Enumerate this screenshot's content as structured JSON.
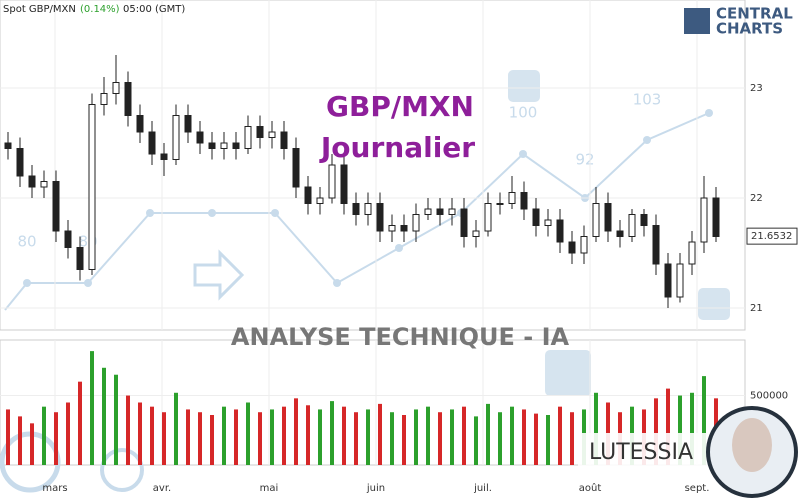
{
  "header": {
    "symbol": "Spot GBP/MXN",
    "change": "(0.14%)",
    "time": "05:00 (GMT)"
  },
  "logo": {
    "line1": "CENTRAL",
    "line2": "CHARTS"
  },
  "watermark": {
    "text": "ANALYSE TECHNIQUE - IA",
    "scores": [
      "80",
      "80",
      "100",
      "92",
      "103"
    ]
  },
  "badge": "LUTESSIA",
  "chart_data": {
    "type": "candlestick",
    "title": "GBP/MXN",
    "subtitle": "Journalier",
    "open": [
      22.5,
      22.45,
      22.2,
      22.1,
      22.15,
      21.7,
      21.55,
      21.35,
      22.85,
      22.95,
      23.05,
      22.75,
      22.6,
      22.4,
      22.35,
      22.75,
      22.6,
      22.5,
      22.45,
      22.5,
      22.45,
      22.65,
      22.55,
      22.6,
      22.45,
      22.1,
      21.95,
      22.0,
      22.3,
      21.95,
      21.85,
      21.95,
      21.7,
      21.75,
      21.7,
      21.85,
      21.9,
      21.85,
      21.9,
      21.65,
      21.7,
      21.95,
      21.95,
      22.05,
      21.9,
      21.75,
      21.8,
      21.6,
      21.5,
      21.65,
      21.95,
      21.7,
      21.65,
      21.85,
      21.75,
      21.4,
      21.1,
      21.4,
      21.6,
      22.0
    ],
    "high": [
      22.6,
      22.55,
      22.3,
      22.25,
      22.25,
      21.8,
      21.65,
      22.95,
      23.1,
      23.3,
      23.15,
      22.85,
      22.7,
      22.5,
      22.85,
      22.85,
      22.7,
      22.6,
      22.6,
      22.6,
      22.75,
      22.75,
      22.7,
      22.7,
      22.55,
      22.2,
      22.1,
      22.4,
      22.4,
      22.05,
      22.05,
      22.05,
      21.85,
      21.85,
      21.95,
      22.0,
      22.0,
      22.0,
      22.0,
      21.8,
      22.05,
      22.05,
      22.2,
      22.15,
      22.0,
      21.9,
      21.9,
      21.7,
      21.75,
      22.1,
      22.05,
      21.8,
      21.9,
      21.9,
      21.85,
      21.5,
      21.5,
      21.7,
      22.2,
      22.1
    ],
    "low": [
      22.35,
      22.1,
      22.0,
      22.0,
      21.6,
      21.45,
      21.25,
      21.3,
      22.75,
      22.85,
      22.65,
      22.5,
      22.3,
      22.2,
      22.3,
      22.5,
      22.4,
      22.35,
      22.35,
      22.35,
      22.4,
      22.45,
      22.45,
      22.35,
      22.0,
      21.85,
      21.85,
      21.95,
      21.85,
      21.75,
      21.75,
      21.6,
      21.6,
      21.6,
      21.6,
      21.8,
      21.75,
      21.75,
      21.55,
      21.55,
      21.65,
      21.85,
      21.9,
      21.8,
      21.65,
      21.65,
      21.5,
      21.4,
      21.4,
      21.6,
      21.6,
      21.55,
      21.6,
      21.65,
      21.3,
      21.0,
      21.05,
      21.3,
      21.5,
      21.6
    ],
    "close": [
      22.45,
      22.2,
      22.1,
      22.15,
      21.7,
      21.55,
      21.35,
      22.85,
      22.95,
      23.05,
      22.75,
      22.6,
      22.4,
      22.35,
      22.75,
      22.6,
      22.5,
      22.45,
      22.5,
      22.45,
      22.65,
      22.55,
      22.6,
      22.45,
      22.1,
      21.95,
      22.0,
      22.3,
      21.95,
      21.85,
      21.95,
      21.7,
      21.75,
      21.7,
      21.85,
      21.9,
      21.85,
      21.9,
      21.65,
      21.7,
      21.95,
      21.95,
      22.05,
      21.9,
      21.75,
      21.8,
      21.6,
      21.5,
      21.65,
      21.95,
      21.7,
      21.65,
      21.85,
      21.75,
      21.4,
      21.1,
      21.4,
      21.6,
      22.0,
      21.65
    ],
    "volume": [
      400000,
      350000,
      300000,
      420000,
      380000,
      450000,
      600000,
      820000,
      700000,
      650000,
      500000,
      450000,
      420000,
      380000,
      520000,
      400000,
      380000,
      360000,
      420000,
      400000,
      450000,
      380000,
      400000,
      420000,
      480000,
      430000,
      400000,
      460000,
      420000,
      380000,
      400000,
      440000,
      380000,
      360000,
      400000,
      420000,
      380000,
      400000,
      420000,
      350000,
      440000,
      380000,
      420000,
      400000,
      370000,
      360000,
      420000,
      380000,
      400000,
      520000,
      450000,
      380000,
      420000,
      400000,
      480000,
      550000,
      500000,
      520000,
      640000,
      480000
    ],
    "x_labels": [
      "mars",
      "avr.",
      "mai",
      "juin",
      "juil.",
      "août",
      "sept."
    ],
    "ylim": [
      20.8,
      23.8
    ],
    "yticks": [
      21,
      22,
      23
    ],
    "y2lim": [
      0,
      900000
    ],
    "y2ticks": [
      500000
    ],
    "last_price": 21.6532,
    "candle_color": "#222222",
    "up_color": "#2ca02c",
    "down_color": "#d62728",
    "grid": true
  }
}
